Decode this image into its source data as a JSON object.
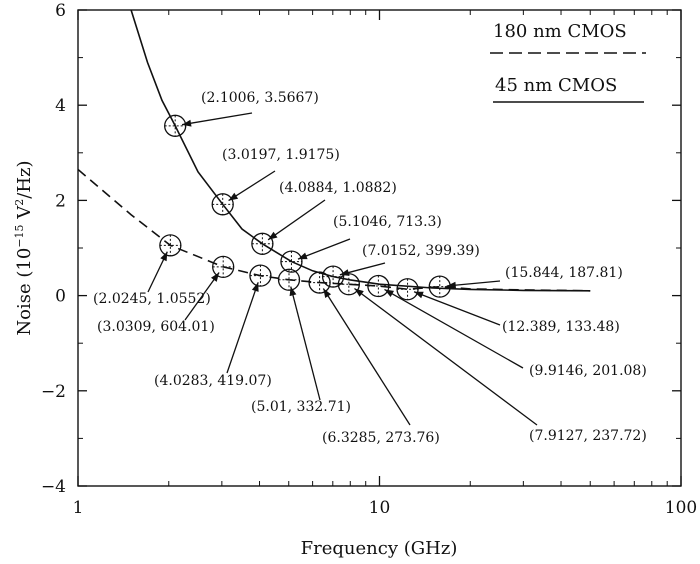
{
  "chart_data": {
    "type": "line",
    "xlabel": "Frequency (GHz)",
    "ylabel_prefix": "Noise (10",
    "ylabel_exp": "−15",
    "ylabel_mid": " V",
    "ylabel_sq": "2",
    "ylabel_suffix": "/Hz)",
    "xscale": "log",
    "xlim": [
      1,
      100
    ],
    "ylim": [
      -4,
      6
    ],
    "xticks": [
      1,
      10,
      100
    ],
    "xtick_labels": [
      "1",
      "10",
      "100"
    ],
    "yticks": [
      -4,
      -2,
      0,
      2,
      4,
      6
    ],
    "ytick_labels": [
      "−4",
      "−2",
      "0",
      "2",
      "4",
      "6"
    ],
    "grid": false,
    "legend_position": "top-right",
    "series": [
      {
        "name": "180 nm CMOS",
        "style": "dashed",
        "x": [
          1,
          1.5,
          2.0245,
          3.0309,
          4.0283,
          5.01,
          6.3285,
          7.9127,
          9.9146,
          12.389,
          15.844,
          20,
          30,
          50
        ],
        "y": [
          2.65,
          1.7,
          1.0552,
          0.604,
          0.419,
          0.3327,
          0.2738,
          0.2377,
          0.2011,
          0.1335,
          0.1878,
          0.14,
          0.12,
          0.1
        ]
      },
      {
        "name": "45 nm CMOS",
        "style": "solid",
        "x": [
          1.5,
          1.7,
          1.9,
          2.1006,
          2.5,
          3.0197,
          3.5,
          4.0884,
          5.1046,
          6,
          7.0152,
          8,
          10,
          15,
          20,
          30,
          50
        ],
        "y": [
          6.0,
          4.9,
          4.1,
          3.5667,
          2.6,
          1.9175,
          1.4,
          1.0882,
          0.7133,
          0.52,
          0.3994,
          0.33,
          0.24,
          0.16,
          0.13,
          0.11,
          0.1
        ]
      }
    ],
    "markers": [
      {
        "x": 2.1006,
        "y": 3.5667
      },
      {
        "x": 3.0197,
        "y": 1.9175
      },
      {
        "x": 4.0884,
        "y": 1.0882
      },
      {
        "x": 5.1046,
        "y": 0.7133
      },
      {
        "x": 7.0152,
        "y": 0.3994
      },
      {
        "x": 2.0245,
        "y": 1.0552
      },
      {
        "x": 3.0309,
        "y": 0.604
      },
      {
        "x": 4.0283,
        "y": 0.419
      },
      {
        "x": 5.01,
        "y": 0.3327
      },
      {
        "x": 6.3285,
        "y": 0.2738
      },
      {
        "x": 7.9127,
        "y": 0.2377
      },
      {
        "x": 9.9146,
        "y": 0.2011
      },
      {
        "x": 12.389,
        "y": 0.1335
      },
      {
        "x": 15.844,
        "y": 0.1878
      }
    ],
    "annotations": [
      {
        "text": "(2.1006, 3.5667)",
        "x": 2.1006,
        "y": 3.5667
      },
      {
        "text": "(3.0197, 1.9175)",
        "x": 3.0197,
        "y": 1.9175
      },
      {
        "text": "(4.0884, 1.0882)",
        "x": 4.0884,
        "y": 1.0882
      },
      {
        "text": "(5.1046, 713.3)",
        "x": 5.1046,
        "y": 0.7133
      },
      {
        "text": "(7.0152, 399.39)",
        "x": 7.0152,
        "y": 0.3994
      },
      {
        "text": "(15.844, 187.81)",
        "x": 15.844,
        "y": 0.1878
      },
      {
        "text": "(2.0245, 1.0552)",
        "x": 2.0245,
        "y": 1.0552
      },
      {
        "text": "(3.0309, 604.01)",
        "x": 3.0309,
        "y": 0.604
      },
      {
        "text": "(12.389, 133.48)",
        "x": 12.389,
        "y": 0.1335
      },
      {
        "text": "(4.0283, 419.07)",
        "x": 4.0283,
        "y": 0.419
      },
      {
        "text": "(9.9146, 201.08)",
        "x": 9.9146,
        "y": 0.2011
      },
      {
        "text": "(5.01, 332.71)",
        "x": 5.01,
        "y": 0.3327
      },
      {
        "text": "(7.9127, 237.72)",
        "x": 7.9127,
        "y": 0.2377
      },
      {
        "text": "(6.3285, 273.76)",
        "x": 6.3285,
        "y": 0.2738
      }
    ]
  }
}
